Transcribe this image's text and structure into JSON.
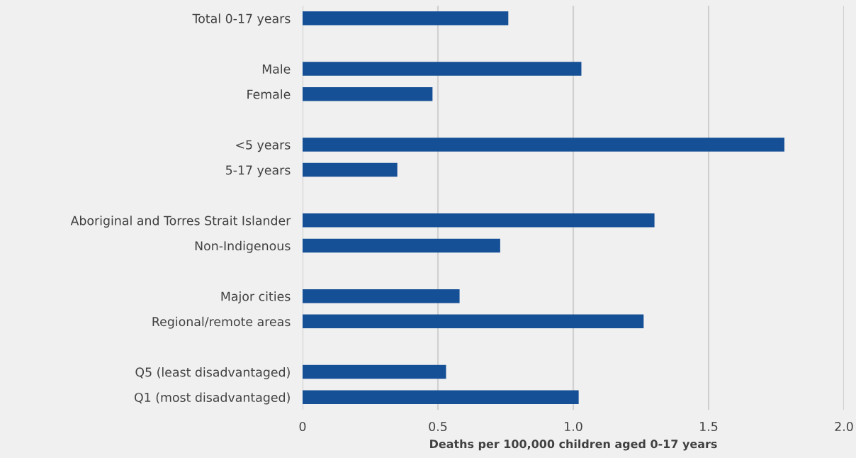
{
  "chart_data": {
    "type": "bar",
    "orientation": "horizontal",
    "xlabel": "Deaths per 100,000 children aged 0-17 years",
    "categories": [
      "Total 0-17 years",
      null,
      "Male",
      "Female",
      null,
      "<5 years",
      "5-17 years",
      null,
      "Aboriginal and Torres Strait Islander",
      "Non-Indigenous",
      null,
      "Major cities",
      "Regional/remote areas",
      null,
      "Q5 (least disadvantaged)",
      "Q1 (most disadvantaged)"
    ],
    "values": [
      0.76,
      null,
      1.03,
      0.48,
      null,
      1.78,
      0.35,
      null,
      1.3,
      0.73,
      null,
      0.58,
      1.26,
      null,
      0.53,
      1.02
    ],
    "color": "#154f96",
    "xlim": [
      0,
      2.0
    ],
    "xticks": [
      0,
      0.5,
      {
        "value": 1,
        "label": "1.0"
      },
      1.5,
      {
        "value": 2,
        "label": "2.0"
      }
    ],
    "grid": "x"
  }
}
